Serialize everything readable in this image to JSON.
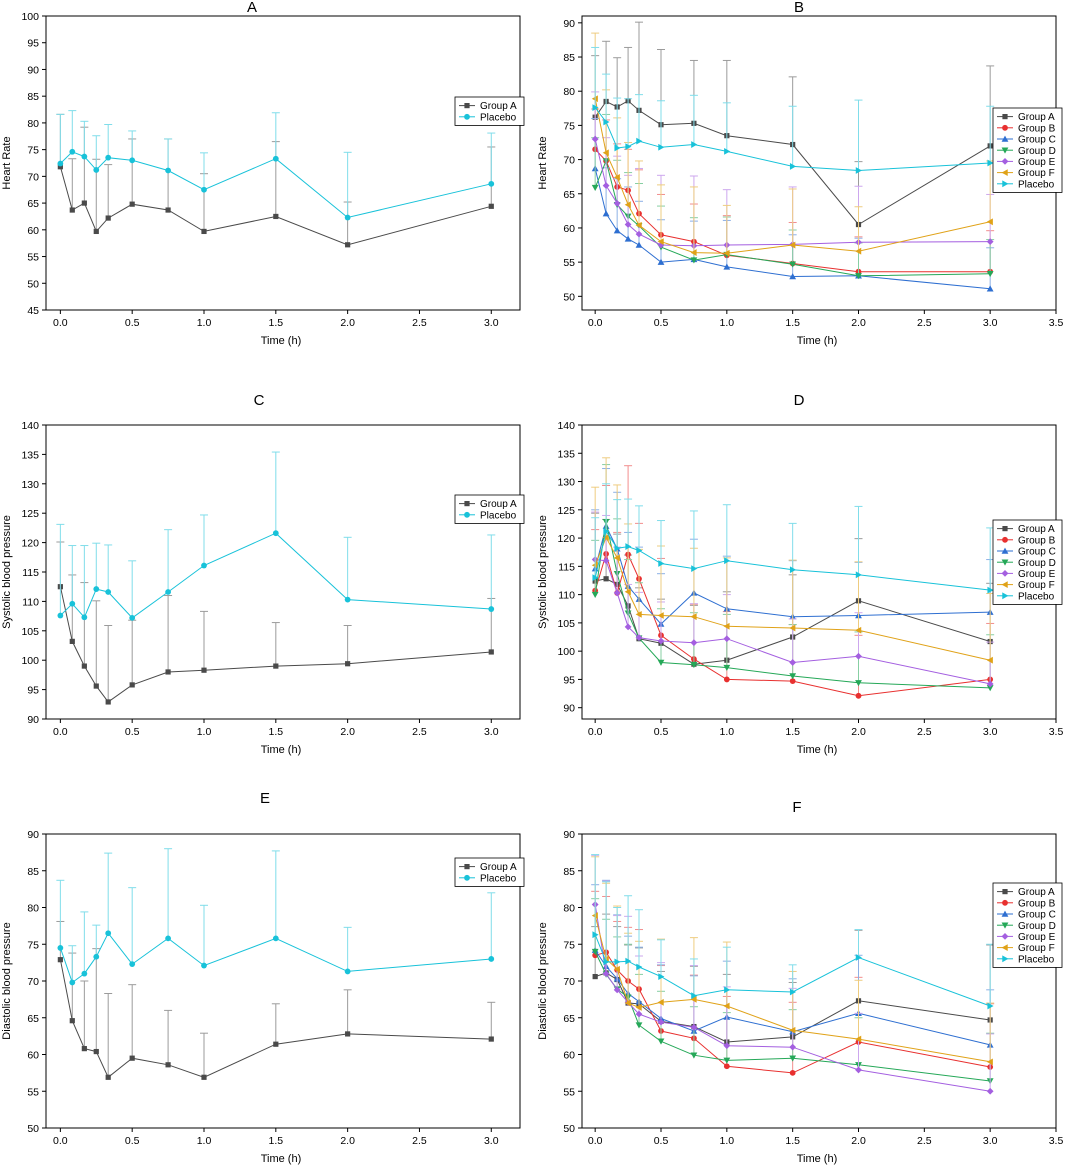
{
  "colors": {
    "Group A": "#4a4a4a",
    "Group B": "#e8302f",
    "Group C": "#2e6fd1",
    "Group D": "#25a858",
    "Group E": "#a45fe0",
    "Group F": "#e0a218",
    "Placebo": "#18c2d9"
  },
  "chart_data": [
    {
      "id": "A",
      "type": "line",
      "title": "A",
      "xlabel": "Time (h)",
      "ylabel": "Heart Rate",
      "xlim": [
        -0.1,
        3.2
      ],
      "ylim": [
        45,
        100
      ],
      "xticks": [
        "0.0",
        "0.5",
        "1.0",
        "1.5",
        "2.0",
        "2.5",
        "3.0"
      ],
      "yticks": [
        "45",
        "50",
        "55",
        "60",
        "65",
        "70",
        "75",
        "80",
        "85",
        "90",
        "95",
        "100"
      ],
      "x": [
        0,
        0.083,
        0.167,
        0.25,
        0.333,
        0.5,
        0.75,
        1.0,
        1.5,
        2.0,
        3.0
      ],
      "series": [
        {
          "name": "Group A",
          "marker": "square",
          "values": [
            71.8,
            63.7,
            65.0,
            59.7,
            62.2,
            64.8,
            63.7,
            59.7,
            62.5,
            57.2,
            64.4
          ],
          "errors": [
            9.8,
            9.6,
            14.2,
            13.5,
            10.0,
            12.2,
            13.3,
            10.8,
            14.0,
            8.0,
            11.1
          ]
        },
        {
          "name": "Placebo",
          "marker": "circle",
          "values": [
            72.4,
            74.6,
            73.7,
            71.2,
            73.5,
            73.0,
            71.1,
            67.5,
            73.3,
            62.3,
            68.6
          ],
          "errors": [
            9.2,
            7.7,
            6.6,
            6.4,
            6.2,
            5.5,
            5.9,
            6.9,
            8.6,
            12.2,
            9.5
          ]
        }
      ]
    },
    {
      "id": "B",
      "type": "line",
      "title": "B",
      "xlabel": "Time (h)",
      "ylabel": "Heart Rate",
      "xlim": [
        -0.1,
        3.5
      ],
      "ylim": [
        48,
        91
      ],
      "xticks": [
        "0.0",
        "0.5",
        "1.0",
        "1.5",
        "2.0",
        "2.5",
        "3.0",
        "3.5"
      ],
      "yticks": [
        "50",
        "55",
        "60",
        "65",
        "70",
        "75",
        "80",
        "85",
        "90"
      ],
      "x": [
        0,
        0.083,
        0.167,
        0.25,
        0.333,
        0.5,
        0.75,
        1.0,
        1.5,
        2.0,
        3.0
      ],
      "series": [
        {
          "name": "Group A",
          "marker": "square",
          "values": [
            76.2,
            78.5,
            77.7,
            78.6,
            77.2,
            75.1,
            75.3,
            73.5,
            72.2,
            60.5,
            72.0
          ],
          "errors": [
            9.0,
            8.8,
            7.2,
            7.8,
            12.9,
            11.0,
            9.2,
            11.0,
            9.9,
            9.2,
            11.7
          ]
        },
        {
          "name": "Group B",
          "marker": "circle",
          "values": [
            71.5,
            69.8,
            66.0,
            65.5,
            62.1,
            59.0,
            58.0,
            56.0,
            54.8,
            53.6,
            53.6
          ],
          "errors": [
            5.9,
            6.0,
            6.3,
            6.0,
            6.4,
            5.9,
            5.5,
            5.8,
            6.0,
            5.1,
            6.0
          ]
        },
        {
          "name": "Group C",
          "marker": "triangle-up",
          "values": [
            68.7,
            62.1,
            59.6,
            58.4,
            57.5,
            55.0,
            55.4,
            54.3,
            52.9,
            53.0,
            51.1
          ],
          "errors": [
            7.3,
            6.7,
            7.6,
            7.6,
            6.4,
            6.2,
            5.6,
            6.8,
            6.1,
            5.5,
            6.0
          ]
        },
        {
          "name": "Group D",
          "marker": "triangle-down",
          "values": [
            65.9,
            69.8,
            63.4,
            61.7,
            60.3,
            57.2,
            55.3,
            56.1,
            54.7,
            53.0,
            53.3
          ],
          "errors": [
            7.3,
            6.8,
            6.5,
            6.4,
            6.2,
            6.0,
            6.2,
            5.5,
            5.0,
            4.8,
            5.0
          ]
        },
        {
          "name": "Group E",
          "marker": "diamond",
          "values": [
            73.0,
            66.2,
            63.6,
            60.5,
            59.1,
            57.5,
            57.4,
            57.5,
            57.6,
            57.9,
            58.0
          ],
          "errors": [
            6.9,
            7.0,
            6.9,
            7.2,
            9.6,
            10.2,
            10.2,
            8.1,
            8.4,
            8.2,
            6.9
          ]
        },
        {
          "name": "Group F",
          "marker": "triangle-left",
          "values": [
            78.9,
            71.0,
            67.4,
            63.4,
            60.4,
            58.0,
            56.4,
            56.3,
            57.5,
            56.6,
            60.9
          ],
          "errors": [
            9.6,
            9.2,
            8.7,
            9.1,
            9.4,
            8.3,
            9.6,
            7.0,
            8.2,
            6.5,
            8.9
          ]
        },
        {
          "name": "Placebo",
          "marker": "triangle-right",
          "values": [
            77.6,
            75.5,
            71.7,
            71.9,
            72.7,
            71.8,
            72.2,
            71.2,
            69.0,
            68.4,
            69.5
          ],
          "errors": [
            8.8,
            7.0,
            7.3,
            7.0,
            6.8,
            6.8,
            7.2,
            7.1,
            8.8,
            10.3,
            8.3
          ]
        }
      ]
    },
    {
      "id": "C",
      "type": "line",
      "title": "C",
      "xlabel": "Time (h)",
      "ylabel": "Systolic blood pressure",
      "xlim": [
        -0.1,
        3.2
      ],
      "ylim": [
        90,
        140
      ],
      "xticks": [
        "0.0",
        "0.5",
        "1.0",
        "1.5",
        "2.0",
        "2.5",
        "3.0"
      ],
      "yticks": [
        "90",
        "95",
        "100",
        "105",
        "110",
        "115",
        "120",
        "125",
        "130",
        "135",
        "140"
      ],
      "x": [
        0,
        0.083,
        0.167,
        0.25,
        0.333,
        0.5,
        0.75,
        1.0,
        1.5,
        2.0,
        3.0
      ],
      "series": [
        {
          "name": "Group A",
          "marker": "square",
          "values": [
            112.5,
            103.2,
            99.0,
            95.6,
            92.9,
            95.8,
            98.0,
            98.3,
            99.0,
            99.4,
            101.4
          ],
          "errors": [
            7.6,
            11.3,
            14.2,
            14.5,
            13.0,
            11.0,
            13.0,
            10.0,
            7.4,
            6.5,
            9.1
          ]
        },
        {
          "name": "Placebo",
          "marker": "circle",
          "values": [
            107.6,
            109.6,
            107.3,
            112.1,
            111.6,
            107.2,
            111.6,
            116.1,
            121.6,
            110.3,
            108.7
          ],
          "errors": [
            15.5,
            9.9,
            12.2,
            7.8,
            8.0,
            9.7,
            10.6,
            8.6,
            13.8,
            10.6,
            12.6
          ]
        }
      ]
    },
    {
      "id": "D",
      "type": "line",
      "title": "D",
      "xlabel": "Time (h)",
      "ylabel": "Systolic blood pressure",
      "xlim": [
        -0.1,
        3.5
      ],
      "ylim": [
        88,
        140
      ],
      "xticks": [
        "0.0",
        "0.5",
        "1.0",
        "1.5",
        "2.0",
        "2.5",
        "3.0",
        "3.5"
      ],
      "yticks": [
        "90",
        "95",
        "100",
        "105",
        "110",
        "115",
        "120",
        "125",
        "130",
        "135",
        "140"
      ],
      "x": [
        0,
        0.083,
        0.167,
        0.25,
        0.333,
        0.5,
        0.75,
        1.0,
        1.5,
        2.0,
        3.0
      ],
      "series": [
        {
          "name": "Group A",
          "marker": "square",
          "values": [
            112.4,
            112.8,
            111.8,
            108.0,
            102.2,
            101.4,
            97.7,
            98.4,
            102.5,
            108.9,
            101.7
          ],
          "errors": [
            12.0,
            10.5,
            8.9,
            9.0,
            9.0,
            7.8,
            10.4,
            12.1,
            11.0,
            11.0,
            10.3
          ]
        },
        {
          "name": "Group B",
          "marker": "circle",
          "values": [
            110.7,
            117.2,
            110.3,
            117.1,
            112.8,
            102.8,
            98.6,
            95.0,
            94.7,
            92.1,
            95.0
          ],
          "errors": [
            10.8,
            12.1,
            10.7,
            15.7,
            9.8,
            13.6,
            9.7,
            12.0,
            10.0,
            10.7,
            9.9
          ]
        },
        {
          "name": "Group C",
          "marker": "triangle-up",
          "values": [
            114.6,
            122.1,
            118.1,
            111.5,
            109.2,
            104.8,
            110.3,
            107.5,
            106.1,
            106.3,
            106.9
          ],
          "errors": [
            10.4,
            10.2,
            10.0,
            9.5,
            9.2,
            8.9,
            9.5,
            9.3,
            9.9,
            9.4,
            9.3
          ]
        },
        {
          "name": "Group D",
          "marker": "triangle-down",
          "values": [
            110.0,
            122.9,
            113.7,
            106.7,
            102.3,
            98.0,
            97.6,
            97.1,
            95.6,
            94.4,
            93.5
          ],
          "errors": [
            9.6,
            10.1,
            9.7,
            9.5,
            9.8,
            9.5,
            9.2,
            9.4,
            9.1,
            9.0,
            9.4
          ]
        },
        {
          "name": "Group E",
          "marker": "diamond",
          "values": [
            116.2,
            116.0,
            110.3,
            104.3,
            102.4,
            101.8,
            101.5,
            102.2,
            98.0,
            99.1,
            94.2
          ],
          "errors": [
            8.4,
            8.0,
            8.1,
            7.5,
            8.0,
            6.9,
            6.9,
            7.8,
            7.7,
            7.7,
            7.4
          ]
        },
        {
          "name": "Group F",
          "marker": "triangle-left",
          "values": [
            115.2,
            120.1,
            116.5,
            110.5,
            106.5,
            106.3,
            106.1,
            104.4,
            104.1,
            103.7,
            98.4
          ],
          "errors": [
            13.8,
            14.1,
            12.9,
            12.0,
            11.5,
            12.3,
            12.1,
            12.1,
            12.0,
            12.1,
            11.8
          ]
        },
        {
          "name": "Placebo",
          "marker": "triangle-right",
          "values": [
            113.0,
            121.2,
            118.2,
            118.5,
            117.8,
            115.5,
            114.6,
            116.0,
            114.4,
            113.5,
            110.8
          ],
          "errors": [
            10.6,
            8.4,
            8.6,
            8.4,
            7.9,
            7.6,
            10.2,
            9.9,
            8.2,
            12.1,
            11.0
          ]
        }
      ]
    },
    {
      "id": "E",
      "type": "line",
      "title": "E",
      "xlabel": "Time (h)",
      "ylabel": "Diastolic blood pressure",
      "xlim": [
        -0.1,
        3.2
      ],
      "ylim": [
        50,
        90
      ],
      "xticks": [
        "0.0",
        "0.5",
        "1.0",
        "1.5",
        "2.0",
        "2.5",
        "3.0"
      ],
      "yticks": [
        "50",
        "55",
        "60",
        "65",
        "70",
        "75",
        "80",
        "85",
        "90"
      ],
      "x": [
        0,
        0.083,
        0.167,
        0.25,
        0.333,
        0.5,
        0.75,
        1.0,
        1.5,
        2.0,
        3.0
      ],
      "series": [
        {
          "name": "Group A",
          "marker": "square",
          "values": [
            72.9,
            64.6,
            60.8,
            60.4,
            56.9,
            59.5,
            58.6,
            56.9,
            61.4,
            62.8,
            62.1
          ],
          "errors": [
            5.2,
            9.2,
            9.2,
            14.0,
            11.4,
            10.0,
            7.4,
            6.0,
            5.5,
            6.0,
            5.0
          ]
        },
        {
          "name": "Placebo",
          "marker": "circle",
          "values": [
            74.5,
            69.8,
            71.0,
            73.3,
            76.5,
            72.3,
            75.8,
            72.1,
            75.8,
            71.3,
            73.0
          ],
          "errors": [
            9.2,
            5.0,
            8.4,
            4.3,
            10.9,
            10.4,
            12.2,
            8.2,
            11.9,
            6.0,
            9.0
          ]
        }
      ]
    },
    {
      "id": "F",
      "type": "line",
      "title": "F",
      "xlabel": "Time (h)",
      "ylabel": "Diastolic blood pressure",
      "xlim": [
        -0.1,
        3.5
      ],
      "ylim": [
        50,
        90
      ],
      "xticks": [
        "0.0",
        "0.5",
        "1.0",
        "1.5",
        "2.0",
        "2.5",
        "3.0",
        "3.5"
      ],
      "yticks": [
        "50",
        "55",
        "60",
        "65",
        "70",
        "75",
        "80",
        "85",
        "90"
      ],
      "x": [
        0,
        0.083,
        0.167,
        0.25,
        0.333,
        0.5,
        0.75,
        1.0,
        1.5,
        2.0,
        3.0
      ],
      "series": [
        {
          "name": "Group A",
          "marker": "square",
          "values": [
            70.6,
            71.1,
            70.2,
            67.0,
            66.9,
            64.5,
            63.8,
            61.7,
            62.4,
            67.3,
            64.7
          ],
          "errors": [
            6.8,
            8.0,
            7.2,
            7.9,
            7.6,
            6.8,
            8.2,
            9.2,
            7.4,
            9.6,
            10.2
          ]
        },
        {
          "name": "Group B",
          "marker": "circle",
          "values": [
            73.5,
            73.9,
            71.5,
            70.0,
            68.9,
            63.2,
            62.2,
            58.4,
            57.5,
            61.7,
            58.3
          ],
          "errors": [
            8.7,
            7.6,
            6.6,
            7.3,
            8.1,
            8.9,
            8.6,
            9.5,
            9.6,
            8.8,
            8.6
          ]
        },
        {
          "name": "Group C",
          "marker": "triangle-up",
          "values": [
            74.2,
            72.0,
            70.3,
            68.3,
            67.2,
            64.9,
            63.2,
            65.1,
            63.1,
            65.6,
            61.3
          ],
          "errors": [
            8.9,
            11.7,
            8.7,
            7.8,
            7.4,
            7.3,
            7.5,
            7.6,
            7.2,
            7.9,
            7.5
          ]
        },
        {
          "name": "Group D",
          "marker": "triangle-down",
          "values": [
            74.0,
            70.9,
            68.9,
            67.8,
            64.0,
            61.8,
            59.9,
            59.2,
            59.5,
            58.6,
            56.4
          ],
          "errors": [
            7.2,
            7.5,
            7.1,
            7.2,
            6.9,
            6.8,
            6.6,
            6.5,
            6.6,
            6.4,
            6.5
          ]
        },
        {
          "name": "Group E",
          "marker": "diamond",
          "values": [
            80.4,
            71.0,
            68.8,
            67.1,
            65.5,
            64.4,
            63.7,
            61.2,
            61.0,
            57.9,
            55.0
          ],
          "errors": [
            6.7,
            12.6,
            10.1,
            11.7,
            7.9,
            8.1,
            8.4,
            8.0,
            8.0,
            7.7,
            7.8
          ]
        },
        {
          "name": "Group F",
          "marker": "triangle-left",
          "values": [
            78.9,
            73.0,
            71.6,
            67.0,
            66.4,
            67.1,
            67.5,
            66.6,
            63.3,
            62.1,
            59.0
          ],
          "errors": [
            8.0,
            10.3,
            8.6,
            9.5,
            9.0,
            8.6,
            8.4,
            8.7,
            8.0,
            8.0,
            8.0
          ]
        },
        {
          "name": "Placebo",
          "marker": "triangle-right",
          "values": [
            76.3,
            72.6,
            72.6,
            72.7,
            71.9,
            70.6,
            68.0,
            68.8,
            68.5,
            73.2,
            66.6
          ],
          "errors": [
            10.9,
            10.9,
            7.4,
            8.9,
            7.8,
            5.0,
            5.0,
            5.8,
            3.7,
            3.8,
            8.4
          ]
        }
      ]
    }
  ]
}
